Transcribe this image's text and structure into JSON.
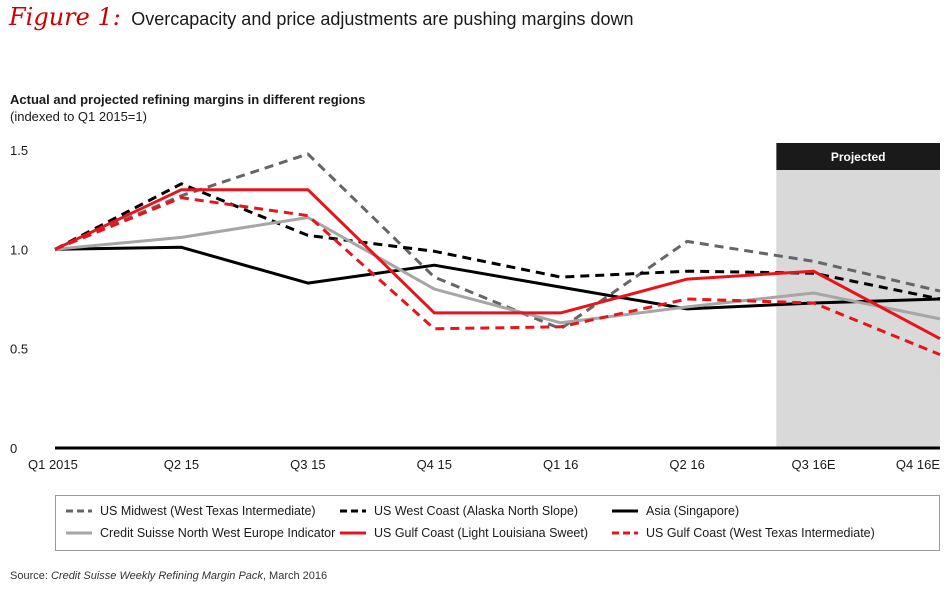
{
  "figure": {
    "label": "Figure 1:",
    "title": "Overcapacity and price adjustments are pushing margins down"
  },
  "chart_data": {
    "type": "line",
    "title": "Actual and projected refining margins in different regions",
    "subtitle": "(indexed to Q1 2015=1)",
    "xlabel": "",
    "ylabel": "",
    "ylim": [
      0,
      1.5
    ],
    "y_ticks": [
      "0",
      "0.5",
      "1.0",
      "1.5"
    ],
    "y_tick_values": [
      0,
      0.5,
      1.0,
      1.5
    ],
    "categories": [
      "Q1 2015",
      "Q2 15",
      "Q3 15",
      "Q4 15",
      "Q1 16",
      "Q2 16",
      "Q3 16E",
      "Q4 16E"
    ],
    "projected_label": "Projected",
    "projected_start_index": 6,
    "series": [
      {
        "name": "US Midwest (West Texas Intermediate)",
        "color": "#666666",
        "style": "dashed",
        "values": [
          1.0,
          1.27,
          1.48,
          0.86,
          0.6,
          1.04,
          0.94,
          0.79
        ]
      },
      {
        "name": "US West Coast  (Alaska North Slope)",
        "color": "#000000",
        "style": "dashed",
        "values": [
          1.0,
          1.33,
          1.07,
          0.99,
          0.86,
          0.89,
          0.88,
          0.75
        ]
      },
      {
        "name": "Asia (Singapore)",
        "color": "#000000",
        "style": "solid",
        "values": [
          1.0,
          1.01,
          0.83,
          0.92,
          0.81,
          0.7,
          0.73,
          0.75
        ]
      },
      {
        "name": "Credit Suisse North West Europe Indicator",
        "color": "#a6a6a6",
        "style": "solid",
        "values": [
          1.0,
          1.06,
          1.16,
          0.8,
          0.63,
          0.71,
          0.78,
          0.65
        ]
      },
      {
        "name": "US Gulf Coast (Light Louisiana Sweet)",
        "color": "#e8141c",
        "style": "solid",
        "values": [
          1.0,
          1.3,
          1.3,
          0.68,
          0.68,
          0.85,
          0.89,
          0.55
        ]
      },
      {
        "name": "US Gulf Coast (West Texas Intermediate)",
        "color": "#e8141c",
        "style": "dashed",
        "values": [
          1.0,
          1.26,
          1.17,
          0.6,
          0.61,
          0.75,
          0.73,
          0.47
        ]
      }
    ]
  },
  "source": {
    "prefix": "Source: ",
    "name": "Credit Suisse Weekly Refining Margin Pack",
    "suffix": ", March 2016"
  }
}
